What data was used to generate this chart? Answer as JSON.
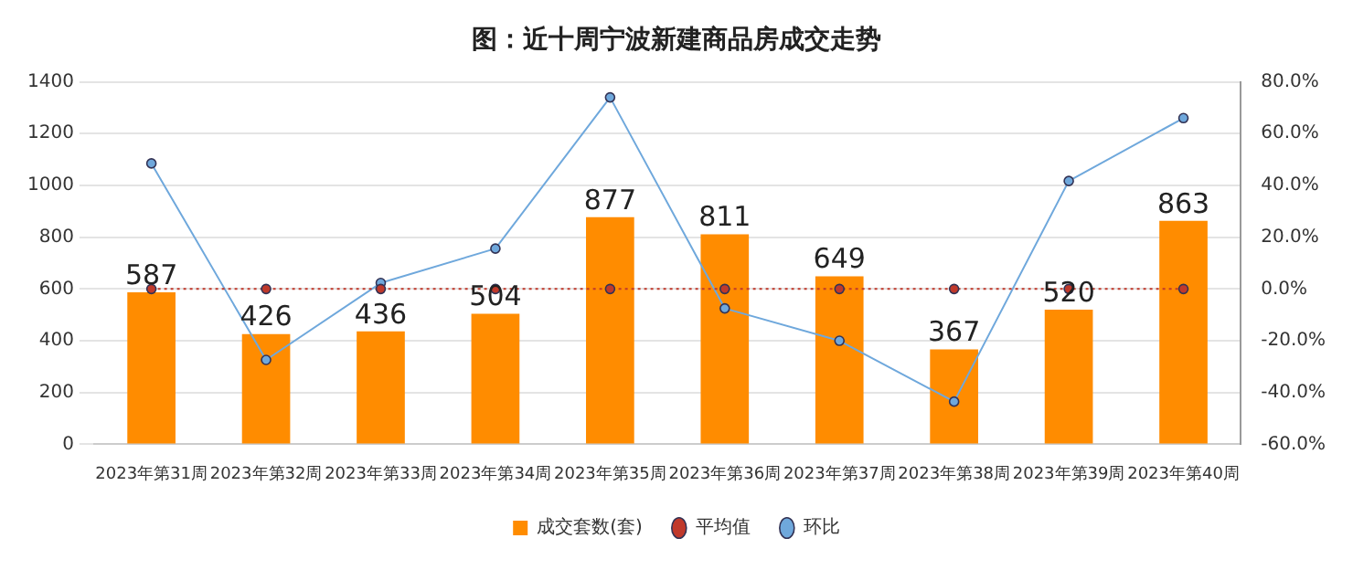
{
  "chart_data": {
    "type": "bar",
    "title": "图：近十周宁波新建商品房成交走势",
    "categories": [
      "2023年第31周",
      "2023年第32周",
      "2023年第33周",
      "2023年第34周",
      "2023年第35周",
      "2023年第36周",
      "2023年第37周",
      "2023年第38周",
      "2023年第39周",
      "2023年第40周"
    ],
    "series": [
      {
        "name": "成交套数(套)",
        "color": "#ff8c00",
        "values": [
          587,
          426,
          436,
          504,
          877,
          811,
          649,
          367,
          520,
          863
        ],
        "value_labels": [
          "587",
          "426",
          "436",
          "504",
          "877",
          "811",
          "649",
          "367",
          "520",
          "863"
        ]
      },
      {
        "name": "平均值",
        "type": "line",
        "axis": "y2",
        "color": "#c0392b",
        "line_style": "dotted",
        "marker": "circle",
        "values": [
          0,
          0,
          0,
          0,
          0,
          0,
          0,
          0,
          0,
          0
        ]
      },
      {
        "name": "环比",
        "type": "line",
        "axis": "y2",
        "color": "#6fa8dc",
        "line_style": "solid",
        "marker": "circle",
        "values": [
          48.5,
          -27.4,
          2.3,
          15.6,
          74.0,
          -7.5,
          -20.0,
          -43.5,
          41.7,
          66.0
        ]
      }
    ],
    "ylim": [
      0,
      1400
    ],
    "yticks": [
      0,
      200,
      400,
      600,
      800,
      1000,
      1200,
      1400
    ],
    "y2lim": [
      -60,
      80
    ],
    "y2ticks": [
      {
        "value": -60,
        "label": "-60.0%"
      },
      {
        "value": -40,
        "label": "-40.0%"
      },
      {
        "value": -20,
        "label": "-20.0%"
      },
      {
        "value": 0,
        "label": "0.0%"
      },
      {
        "value": 20,
        "label": "20.0%"
      },
      {
        "value": 40,
        "label": "40.0%"
      },
      {
        "value": 60,
        "label": "60.0%"
      },
      {
        "value": 80,
        "label": "80.0%"
      }
    ],
    "grid": "y",
    "legend": "bottom"
  }
}
